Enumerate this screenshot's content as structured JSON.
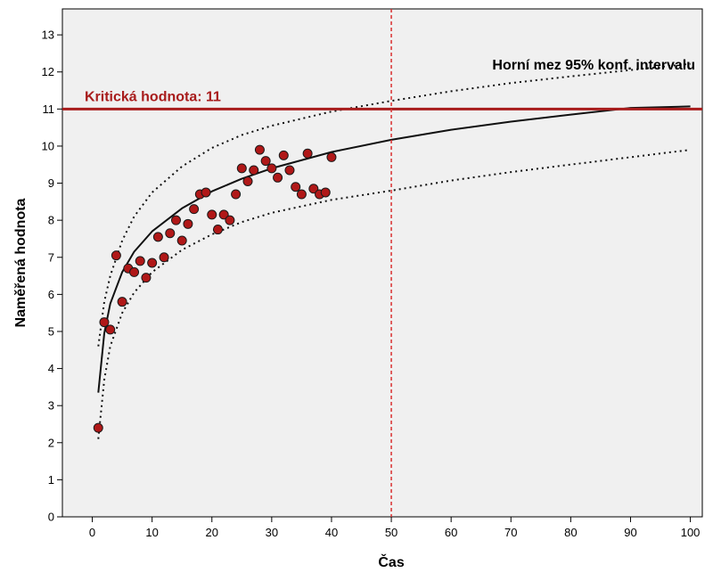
{
  "chart_data": {
    "type": "scatter",
    "xlabel": "Čas",
    "ylabel": "Naměřená hodnota",
    "xlim": [
      -5,
      102
    ],
    "ylim": [
      0,
      13.7
    ],
    "x_ticks": [
      0,
      10,
      20,
      30,
      40,
      50,
      60,
      70,
      80,
      90,
      100
    ],
    "y_ticks": [
      0,
      1,
      2,
      3,
      4,
      5,
      6,
      7,
      8,
      9,
      10,
      11,
      12,
      13
    ],
    "grid": false,
    "background_color": "#f0f0f0",
    "points": {
      "x": [
        1,
        2,
        3,
        4,
        5,
        6,
        7,
        8,
        9,
        10,
        11,
        12,
        13,
        14,
        15,
        16,
        17,
        18,
        19,
        20,
        21,
        22,
        23,
        24,
        25,
        26,
        27,
        28,
        29,
        30,
        31,
        32,
        33,
        34,
        35,
        36,
        37,
        38,
        39,
        40
      ],
      "y": [
        2.4,
        5.25,
        5.05,
        7.05,
        5.8,
        6.7,
        6.6,
        6.9,
        6.45,
        6.85,
        7.55,
        7.0,
        7.65,
        8.0,
        7.45,
        7.9,
        8.3,
        8.7,
        8.75,
        8.15,
        7.75,
        8.15,
        8.0,
        8.7,
        9.4,
        9.05,
        9.35,
        9.9,
        9.6,
        9.4,
        9.15,
        9.75,
        9.35,
        8.9,
        8.7,
        9.8,
        8.85,
        8.7,
        8.75,
        9.7
      ],
      "color": "#b01818"
    },
    "fit_curve": {
      "x": [
        1,
        2,
        3,
        5,
        7,
        10,
        15,
        20,
        25,
        30,
        40,
        50,
        60,
        70,
        80,
        90,
        100
      ],
      "y": [
        3.35,
        4.95,
        5.75,
        6.6,
        7.15,
        7.7,
        8.32,
        8.78,
        9.12,
        9.4,
        9.84,
        10.17,
        10.44,
        10.66,
        10.85,
        11.03,
        11.07
      ]
    },
    "upper_ci": {
      "x": [
        1,
        2,
        3,
        5,
        7,
        10,
        15,
        20,
        25,
        30,
        40,
        50,
        60,
        70,
        80,
        90,
        100
      ],
      "y": [
        4.6,
        5.8,
        6.5,
        7.45,
        8.1,
        8.75,
        9.45,
        9.95,
        10.3,
        10.55,
        10.93,
        11.22,
        11.48,
        11.7,
        11.88,
        12.05,
        12.22
      ]
    },
    "lower_ci": {
      "x": [
        1,
        2,
        3,
        5,
        7,
        10,
        15,
        20,
        25,
        30,
        40,
        50,
        60,
        70,
        80,
        90,
        100
      ],
      "y": [
        2.1,
        3.7,
        4.6,
        5.5,
        6.05,
        6.6,
        7.2,
        7.62,
        7.95,
        8.2,
        8.55,
        8.8,
        9.07,
        9.3,
        9.5,
        9.7,
        9.9
      ]
    },
    "reference_lines": {
      "horizontal": {
        "y": 11,
        "color": "#a81c1c",
        "label": "Kritická hodnota: 11"
      },
      "vertical": {
        "x": 50,
        "color": "#d93030"
      }
    },
    "annotations": {
      "upper_ci_label": "Horní mez 95% konf. intervalu"
    }
  }
}
